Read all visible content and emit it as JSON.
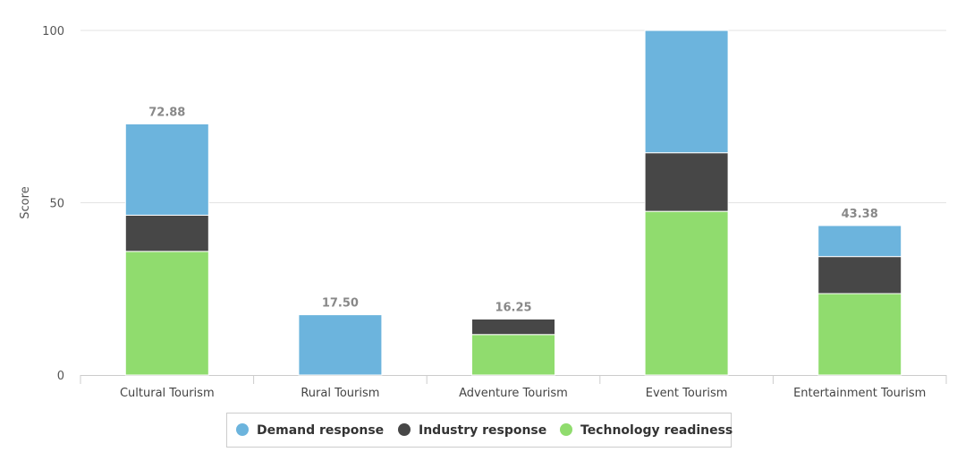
{
  "chart_data": {
    "type": "bar",
    "stacked": true,
    "title": "",
    "xlabel": "",
    "ylabel": "Score",
    "ylim": [
      0,
      100
    ],
    "yticks": [
      0,
      50,
      100
    ],
    "grid": true,
    "legend_position": "bottom",
    "categories": [
      "Cultural Tourism",
      "Rural Tourism",
      "Adventure Tourism",
      "Event Tourism",
      "Entertainment Tourism"
    ],
    "series": [
      {
        "name": "Technology readiness",
        "color": "#90dc6e",
        "values": [
          35.88,
          0,
          11.75,
          47.5,
          23.63
        ]
      },
      {
        "name": "Industry response",
        "color": "#474747",
        "values": [
          10.5,
          0,
          4.5,
          17.0,
          10.75
        ]
      },
      {
        "name": "Demand response",
        "color": "#6cb4dd",
        "values": [
          26.5,
          17.5,
          0,
          35.5,
          9.0
        ]
      }
    ],
    "legend_order": [
      "Demand response",
      "Industry response",
      "Technology readiness"
    ],
    "totals": [
      "72.88",
      "17.50",
      "16.25",
      "",
      "43.38"
    ]
  }
}
